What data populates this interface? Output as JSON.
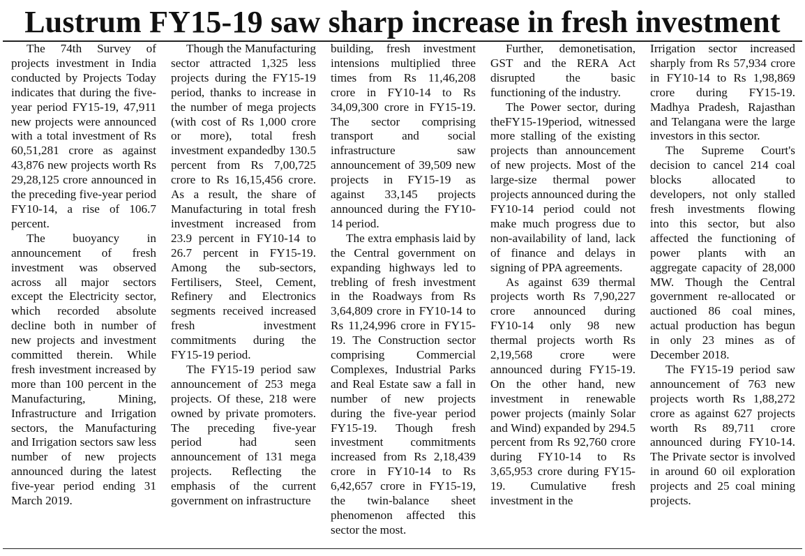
{
  "headline": "Lustrum FY15-19 saw sharp increase in fresh investment",
  "columns": [
    {
      "paragraphs": [
        {
          "text": "The 74th Survey of projects investment in India conducted by Projects Today indicates that during the five-year period FY15-19, 47,911 new projects were announced with a total investment of Rs 60,51,281 crore as against 43,876 new projects worth Rs 29,28,125 crore announced in the preceding five-year period FY10-14, a rise of 106.7 percent."
        },
        {
          "text": "The buoyancy in announcement of fresh investment was observed across all major sectors except the Electricity sector, which recorded absolute decline both in number of new projects and investment committed therein. While fresh investment increased by more than 100 percent in the Manufacturing, Mining, Infrastructure and Irrigation sectors, the Manufacturing and Irrigation sectors saw less number of new projects announced during the latest five-year period ending 31 March 2019."
        }
      ]
    },
    {
      "paragraphs": [
        {
          "text": "Though the Manufacturing sector attracted 1,325 less projects during the FY15-19 period, thanks to increase in the number of mega projects (with cost of Rs 1,000 crore or more), total fresh investment expandedby 130.5 percent from Rs 7,00,725 crore to Rs 16,15,456 crore. As a result, the share of Manufacturing in total fresh investment increased from 23.9 percent in FY10-14 to 26.7 percent in FY15-19. Among the sub-sectors, Fertilisers, Steel, Cement, Refinery and Electronics segments received increased fresh investment commitments during the FY15-19 period."
        },
        {
          "text": "The FY15-19 period saw announcement of 253 mega projects. Of these, 218 were owned by private promoters. The preceding five-year period had seen announcement of 131 mega projects. Reflecting the emphasis of the current government on infrastructure"
        }
      ]
    },
    {
      "paragraphs": [
        {
          "text": "building, fresh investment intensions multiplied three times from Rs 11,46,208 crore in FY10-14 to Rs 34,09,300 crore in FY15-19. The sector comprising transport and social infrastructure saw announcement of 39,509 new projects in FY15-19 as against 33,145 projects announced during the FY10-14 period.",
          "continued": true
        },
        {
          "text": "The extra emphasis laid by the Central government on expanding highways led to trebling of fresh investment in the Roadways from Rs 3,64,809 crore in FY10-14 to Rs 11,24,996 crore in FY15-19. The Construction sector comprising Commercial Complexes, Industrial Parks and Real Estate saw a fall in number of new projects during the five-year period FY15-19. Though fresh investment commitments increased from Rs 2,18,439 crore in FY10-14 to Rs 6,42,657 crore in FY15-19, the twin-balance sheet phenomenon affected this sector the most."
        }
      ]
    },
    {
      "paragraphs": [
        {
          "text": "Further, demonetisation, GST and the RERA Act disrupted the basic functioning of the industry."
        },
        {
          "text": "The Power sector, during theFY15-19period, witnessed more stalling of the existing projects than announcement of new projects. Most of the large-size thermal power projects announced during the FY10-14 period could not make much progress due to non-availability of land, lack of finance and delays in signing of PPA agreements."
        },
        {
          "text": "As against 639 thermal projects worth Rs 7,90,227 crore announced during FY10-14 only 98 new thermal projects worth Rs 2,19,568 crore were announced during FY15-19. On the other hand, new investment in renewable power projects (mainly Solar and Wind) expanded by 294.5 percent from Rs 92,760 crore during FY10-14 to Rs 3,65,953 crore during FY15-19. Cumulative fresh investment in the"
        }
      ]
    },
    {
      "paragraphs": [
        {
          "text": "Irrigation sector increased sharply from Rs 57,934 crore in FY10-14 to Rs 1,98,869 crore during FY15-19. Madhya Pradesh, Rajasthan and Telangana were the large investors in this sector.",
          "continued": true
        },
        {
          "text": "The Supreme Court's decision to cancel 214 coal blocks allocated to developers, not only stalled fresh investments flowing into this sector, but also affected the functioning of power plants with an aggregate capacity of 28,000 MW. Though the Central government re-allocated or auctioned 86 coal mines, actual production has begun in only 23 mines as of December 2018."
        },
        {
          "text": "The FY15-19 period saw announcement of 763 new projects worth Rs 1,88,272 crore as against 627 projects worth Rs 89,711 crore announced during FY10-14. The Private sector is involved in around 60 oil exploration projects and 25 coal mining projects."
        }
      ]
    }
  ]
}
